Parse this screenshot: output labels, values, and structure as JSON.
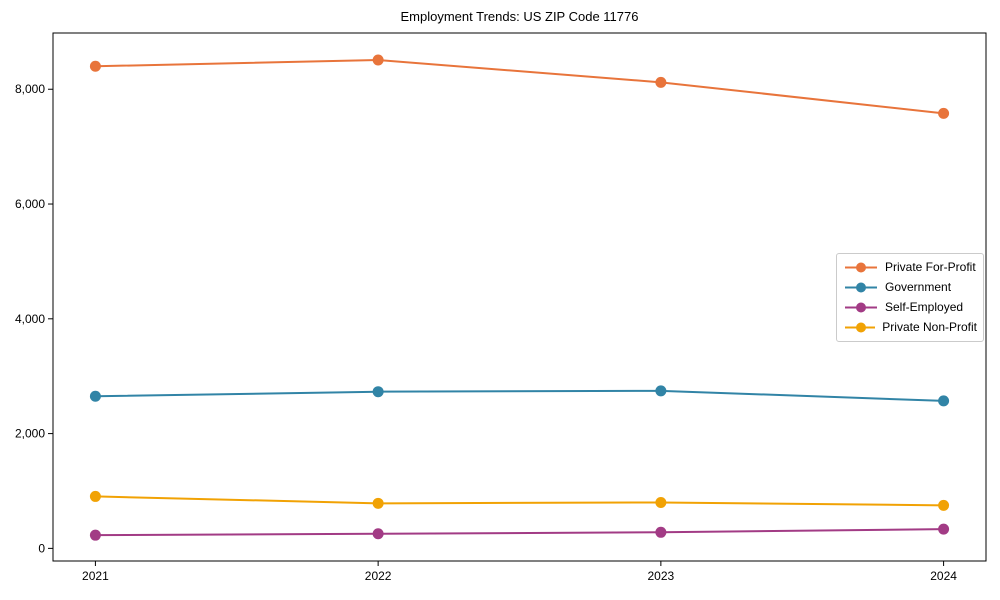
{
  "chart_data": {
    "type": "line",
    "title": "Employment Trends: US ZIP Code 11776",
    "xlabel": "",
    "ylabel": "",
    "x": [
      2021,
      2022,
      2023,
      2024
    ],
    "x_tick_labels": [
      "2021",
      "2022",
      "2023",
      "2024"
    ],
    "series": [
      {
        "name": "Private For-Profit",
        "color": "#E8743B",
        "values": [
          8400,
          8510,
          8120,
          7580
        ]
      },
      {
        "name": "Government",
        "color": "#3184A6",
        "values": [
          2650,
          2730,
          2745,
          2570
        ]
      },
      {
        "name": "Self-Employed",
        "color": "#A23B85",
        "values": [
          230,
          255,
          280,
          335
        ]
      },
      {
        "name": "Private Non-Profit",
        "color": "#F1A204",
        "values": [
          905,
          785,
          800,
          750
        ]
      }
    ],
    "yticks": [
      0,
      2000,
      4000,
      6000,
      8000
    ],
    "ytick_labels": [
      "0",
      "2,000",
      "4,000",
      "6,000",
      "8,000"
    ],
    "xlim": [
      2020.85,
      2024.15
    ],
    "ylim": [
      -220,
      8980
    ],
    "grid": false,
    "legend_position": "center right",
    "marker": "circle",
    "axis_color": "#000000",
    "plot_background": "#ffffff"
  }
}
